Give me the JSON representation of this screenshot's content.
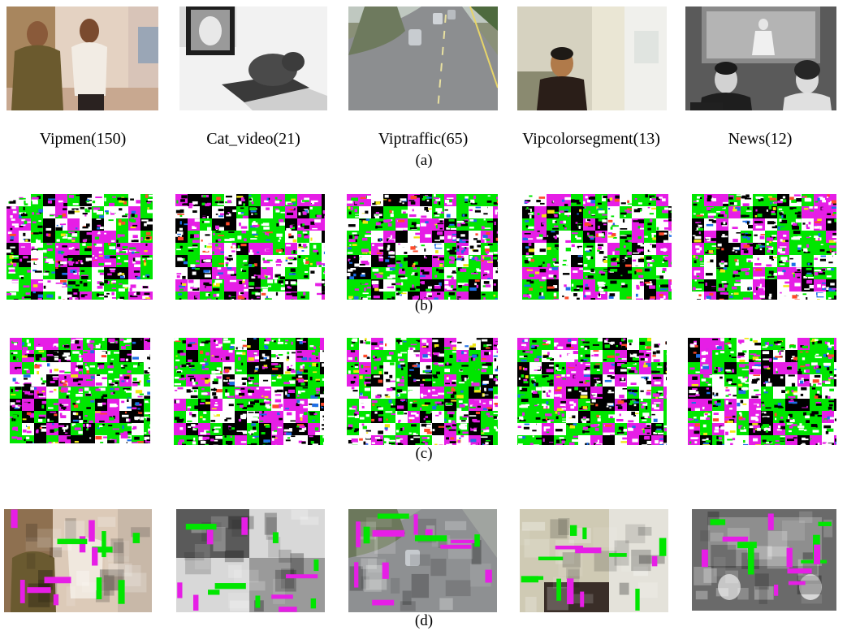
{
  "figure": {
    "video_labels": [
      "Vipmen(150)",
      "Cat_video(21)",
      "Viptraffic(65)",
      "Vipcolorsegment(13)",
      "News(12)"
    ],
    "captions": {
      "a": "(a)",
      "b": "(b)",
      "c": "(c)",
      "d": "(d)"
    },
    "scrambled_palette": [
      "#00e600",
      "#ffffff",
      "#000000",
      "#e61ee6",
      "#1e6ee6",
      "#f0e614",
      "#ff4a2a"
    ]
  }
}
